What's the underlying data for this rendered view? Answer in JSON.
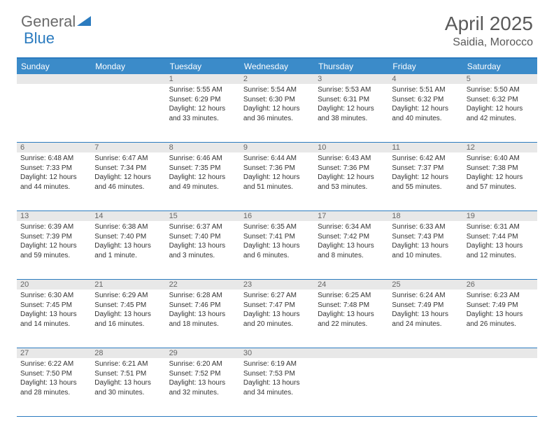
{
  "logo": {
    "text1": "General",
    "text2": "Blue"
  },
  "title": "April 2025",
  "location": "Saidia, Morocco",
  "colors": {
    "header_bar": "#3b8bc9",
    "accent": "#2b7bbf",
    "daynum_bg": "#e8e8e8",
    "text": "#333333",
    "muted": "#6a6a6a"
  },
  "weekdays": [
    "Sunday",
    "Monday",
    "Tuesday",
    "Wednesday",
    "Thursday",
    "Friday",
    "Saturday"
  ],
  "weeks": [
    [
      null,
      null,
      {
        "n": "1",
        "sr": "5:55 AM",
        "ss": "6:29 PM",
        "dl": "12 hours and 33 minutes."
      },
      {
        "n": "2",
        "sr": "5:54 AM",
        "ss": "6:30 PM",
        "dl": "12 hours and 36 minutes."
      },
      {
        "n": "3",
        "sr": "5:53 AM",
        "ss": "6:31 PM",
        "dl": "12 hours and 38 minutes."
      },
      {
        "n": "4",
        "sr": "5:51 AM",
        "ss": "6:32 PM",
        "dl": "12 hours and 40 minutes."
      },
      {
        "n": "5",
        "sr": "5:50 AM",
        "ss": "6:32 PM",
        "dl": "12 hours and 42 minutes."
      }
    ],
    [
      {
        "n": "6",
        "sr": "6:48 AM",
        "ss": "7:33 PM",
        "dl": "12 hours and 44 minutes."
      },
      {
        "n": "7",
        "sr": "6:47 AM",
        "ss": "7:34 PM",
        "dl": "12 hours and 46 minutes."
      },
      {
        "n": "8",
        "sr": "6:46 AM",
        "ss": "7:35 PM",
        "dl": "12 hours and 49 minutes."
      },
      {
        "n": "9",
        "sr": "6:44 AM",
        "ss": "7:36 PM",
        "dl": "12 hours and 51 minutes."
      },
      {
        "n": "10",
        "sr": "6:43 AM",
        "ss": "7:36 PM",
        "dl": "12 hours and 53 minutes."
      },
      {
        "n": "11",
        "sr": "6:42 AM",
        "ss": "7:37 PM",
        "dl": "12 hours and 55 minutes."
      },
      {
        "n": "12",
        "sr": "6:40 AM",
        "ss": "7:38 PM",
        "dl": "12 hours and 57 minutes."
      }
    ],
    [
      {
        "n": "13",
        "sr": "6:39 AM",
        "ss": "7:39 PM",
        "dl": "12 hours and 59 minutes."
      },
      {
        "n": "14",
        "sr": "6:38 AM",
        "ss": "7:40 PM",
        "dl": "13 hours and 1 minute."
      },
      {
        "n": "15",
        "sr": "6:37 AM",
        "ss": "7:40 PM",
        "dl": "13 hours and 3 minutes."
      },
      {
        "n": "16",
        "sr": "6:35 AM",
        "ss": "7:41 PM",
        "dl": "13 hours and 6 minutes."
      },
      {
        "n": "17",
        "sr": "6:34 AM",
        "ss": "7:42 PM",
        "dl": "13 hours and 8 minutes."
      },
      {
        "n": "18",
        "sr": "6:33 AM",
        "ss": "7:43 PM",
        "dl": "13 hours and 10 minutes."
      },
      {
        "n": "19",
        "sr": "6:31 AM",
        "ss": "7:44 PM",
        "dl": "13 hours and 12 minutes."
      }
    ],
    [
      {
        "n": "20",
        "sr": "6:30 AM",
        "ss": "7:45 PM",
        "dl": "13 hours and 14 minutes."
      },
      {
        "n": "21",
        "sr": "6:29 AM",
        "ss": "7:45 PM",
        "dl": "13 hours and 16 minutes."
      },
      {
        "n": "22",
        "sr": "6:28 AM",
        "ss": "7:46 PM",
        "dl": "13 hours and 18 minutes."
      },
      {
        "n": "23",
        "sr": "6:27 AM",
        "ss": "7:47 PM",
        "dl": "13 hours and 20 minutes."
      },
      {
        "n": "24",
        "sr": "6:25 AM",
        "ss": "7:48 PM",
        "dl": "13 hours and 22 minutes."
      },
      {
        "n": "25",
        "sr": "6:24 AM",
        "ss": "7:49 PM",
        "dl": "13 hours and 24 minutes."
      },
      {
        "n": "26",
        "sr": "6:23 AM",
        "ss": "7:49 PM",
        "dl": "13 hours and 26 minutes."
      }
    ],
    [
      {
        "n": "27",
        "sr": "6:22 AM",
        "ss": "7:50 PM",
        "dl": "13 hours and 28 minutes."
      },
      {
        "n": "28",
        "sr": "6:21 AM",
        "ss": "7:51 PM",
        "dl": "13 hours and 30 minutes."
      },
      {
        "n": "29",
        "sr": "6:20 AM",
        "ss": "7:52 PM",
        "dl": "13 hours and 32 minutes."
      },
      {
        "n": "30",
        "sr": "6:19 AM",
        "ss": "7:53 PM",
        "dl": "13 hours and 34 minutes."
      },
      null,
      null,
      null
    ]
  ],
  "labels": {
    "sunrise": "Sunrise: ",
    "sunset": "Sunset: ",
    "daylight": "Daylight: "
  }
}
